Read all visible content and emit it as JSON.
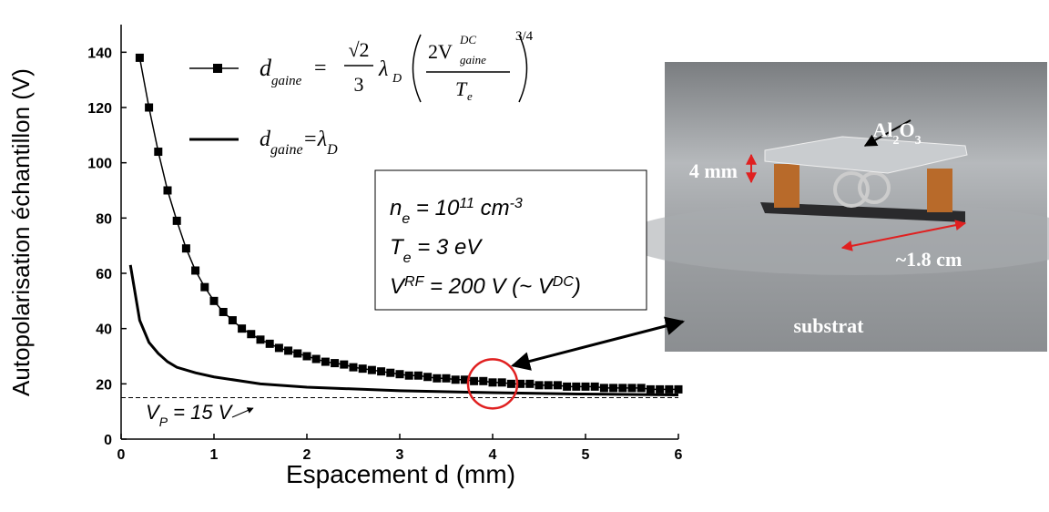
{
  "chart_data": {
    "type": "line",
    "x_label": "Espacement d (mm)",
    "y_label": "Autopolarisation échantillon (V)",
    "xlim": [
      0,
      6
    ],
    "xticks": [
      0,
      1,
      2,
      3,
      4,
      5,
      6
    ],
    "ylim": [
      0,
      150
    ],
    "yticks": [
      0,
      20,
      40,
      60,
      80,
      100,
      120,
      140
    ],
    "series": [
      {
        "color": "#000000",
        "marker": "square",
        "x": [
          0.2,
          0.3,
          0.4,
          0.5,
          0.6,
          0.7,
          0.8,
          0.9,
          1.0,
          1.1,
          1.2,
          1.3,
          1.4,
          1.5,
          1.6,
          1.7,
          1.8,
          1.9,
          2.0,
          2.1,
          2.2,
          2.3,
          2.4,
          2.5,
          2.6,
          2.7,
          2.8,
          2.9,
          3.0,
          3.1,
          3.2,
          3.3,
          3.4,
          3.5,
          3.6,
          3.7,
          3.8,
          3.9,
          4.0,
          4.1,
          4.2,
          4.3,
          4.4,
          4.5,
          4.6,
          4.7,
          4.8,
          4.9,
          5.0,
          5.1,
          5.2,
          5.3,
          5.4,
          5.5,
          5.6,
          5.7,
          5.8,
          5.9,
          6.0
        ],
        "values": [
          138,
          120,
          104,
          90,
          79,
          69,
          61,
          55,
          50,
          46,
          43,
          40,
          38,
          36,
          34.5,
          33,
          32,
          31,
          30,
          29,
          28,
          27.5,
          27,
          26,
          25.5,
          25,
          24.5,
          24,
          23.5,
          23,
          23,
          22.5,
          22,
          22,
          21.5,
          21.5,
          21,
          21,
          20.5,
          20.5,
          20,
          20,
          20,
          19.5,
          19.5,
          19.5,
          19,
          19,
          19,
          19,
          18.5,
          18.5,
          18.5,
          18.5,
          18.5,
          18,
          18,
          18,
          18
        ],
        "legend": {
          "lhs": "d",
          "lhs_sub": "gaine",
          "eq": "=",
          "frac1_num": "√2",
          "frac1_den": "3",
          "lambda": "λ",
          "lambda_sub": "D",
          "frac2_num": "2V",
          "frac2_num_sup": "DC",
          "frac2_num_sub": "gaine",
          "frac2_den": "T",
          "frac2_den_sub": "e",
          "exponent": "3/4"
        }
      },
      {
        "color": "#000000",
        "marker": "none",
        "x": [
          0.1,
          0.2,
          0.3,
          0.4,
          0.5,
          0.6,
          0.8,
          1.0,
          1.5,
          2.0,
          3.0,
          4.0,
          5.0,
          6.0
        ],
        "values": [
          63,
          43,
          35,
          31,
          28,
          26,
          24,
          22.5,
          20,
          18.8,
          17.5,
          16.8,
          16.3,
          16
        ],
        "legend_parts": [
          {
            "t": "d"
          },
          {
            "t": "gaine",
            "s": "sub"
          },
          {
            "t": "=λ"
          },
          {
            "t": "D",
            "s": "sub"
          }
        ]
      }
    ],
    "reference_line": {
      "value": 15,
      "label_parts": [
        {
          "t": "V"
        },
        {
          "t": "P",
          "s": "sub"
        },
        {
          "t": " = 15 V"
        }
      ]
    },
    "highlight": {
      "x": 4,
      "y": 20,
      "color": "#e02020"
    },
    "parameters": [
      [
        {
          "t": "n"
        },
        {
          "t": "e",
          "s": "sub"
        },
        {
          "t": " = 10"
        },
        {
          "t": "11",
          "s": "sup"
        },
        {
          "t": " cm"
        },
        {
          "t": "-3",
          "s": "sup"
        }
      ],
      [
        {
          "t": "T"
        },
        {
          "t": "e",
          "s": "sub"
        },
        {
          "t": " = 3 eV"
        }
      ],
      [
        {
          "t": "V"
        },
        {
          "t": "RF",
          "s": "sup"
        },
        {
          "t": " = 200 V (~ V"
        },
        {
          "t": "DC",
          "s": "sup"
        },
        {
          "t": ")"
        }
      ]
    ],
    "photo": {
      "material": [
        {
          "t": "Al"
        },
        {
          "t": "2",
          "s": "sub"
        },
        {
          "t": "O"
        },
        {
          "t": "3",
          "s": "sub"
        }
      ],
      "height": "4 mm",
      "width": "~1.8 cm",
      "substrate": "substrat"
    }
  }
}
